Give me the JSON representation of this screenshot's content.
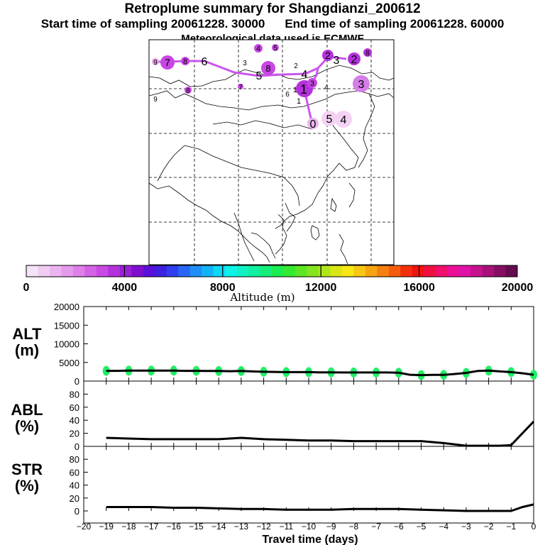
{
  "header": {
    "title": "Retroplume summary for Shangdianzi_200612",
    "start_text": "Start time of sampling 20061228. 30000",
    "end_text": "End time of sampling 20061228. 60000",
    "met_text": "Meteorological data used is ECMWF"
  },
  "colorbar": {
    "tick_labels": [
      "0",
      "4000",
      "8000",
      "12000",
      "16000",
      "20000"
    ],
    "label": "Altitude (m)",
    "colors": [
      "#f5e4f7",
      "#f0ccf3",
      "#ebb4f0",
      "#e59aed",
      "#df7fe9",
      "#d463e6",
      "#c84ae3",
      "#b432dc",
      "#9a1fd6",
      "#7e0fd0",
      "#5a10d8",
      "#3d21e0",
      "#2f3ff0",
      "#2866f6",
      "#1f8ef8",
      "#14b3f7",
      "#0fd7f5",
      "#0ff2e8",
      "#10f2c5",
      "#11f0a0",
      "#15ee7a",
      "#1ceb52",
      "#34e92f",
      "#5ce624",
      "#86e51e",
      "#b0e619",
      "#d8e716",
      "#f7e716",
      "#f8c713",
      "#f7a411",
      "#f5800f",
      "#f45d0e",
      "#f2300d",
      "#f1130f",
      "#f10f40",
      "#f10f6c",
      "#ec1096",
      "#df12a6",
      "#c5128f",
      "#a71178",
      "#860e62",
      "#640b4d"
    ]
  },
  "map": {
    "top_labels": [
      "9",
      "7",
      "8",
      "6",
      "3",
      "4",
      "5",
      "8",
      "5",
      "4",
      "2",
      "2",
      "3",
      "2",
      "8"
    ],
    "mid_labels": [
      "9",
      "8",
      "7",
      "6",
      "1",
      "1",
      "3",
      "1",
      "4",
      "3"
    ],
    "low_labels": [
      "0",
      "5",
      "4"
    ],
    "path_color": "#cc55ee"
  },
  "chart_data": [
    {
      "type": "line",
      "panel": "ALT",
      "ylabel_line1": "ALT",
      "ylabel_line2": "(m)",
      "xlim": [
        -20,
        0
      ],
      "ylim": [
        0,
        20000
      ],
      "yticks": [
        0,
        5000,
        10000,
        15000,
        20000
      ],
      "ytick_labels": [
        "0",
        "5000",
        "10000",
        "15000",
        "20000"
      ],
      "x": [
        -19.0,
        -18.5,
        -18.0,
        -17.5,
        -17.0,
        -16.5,
        -16.0,
        -15.5,
        -15.0,
        -14.5,
        -14.0,
        -13.5,
        -13.0,
        -12.5,
        -12.0,
        -11.5,
        -11.0,
        -10.5,
        -10.0,
        -9.5,
        -9.0,
        -8.5,
        -8.0,
        -7.5,
        -7.0,
        -6.5,
        -6.0,
        -5.5,
        -5.0,
        -4.5,
        -4.0,
        -3.5,
        -3.0,
        -2.5,
        -2.0,
        -1.5,
        -1.0,
        -0.5,
        0.0
      ],
      "values": [
        2750,
        2750,
        2800,
        2800,
        2800,
        2800,
        2800,
        2750,
        2750,
        2700,
        2700,
        2650,
        2700,
        2600,
        2500,
        2450,
        2400,
        2400,
        2400,
        2350,
        2350,
        2300,
        2300,
        2300,
        2300,
        2300,
        2250,
        1700,
        1600,
        1650,
        1650,
        1900,
        2200,
        2700,
        2800,
        2600,
        2400,
        2100,
        1700
      ],
      "plume_color": "#22ee66",
      "plume_points": [
        [
          -19.0,
          2750
        ],
        [
          -18.0,
          2800
        ],
        [
          -17.0,
          2800
        ],
        [
          -16.0,
          2800
        ],
        [
          -15.0,
          2750
        ],
        [
          -14.0,
          2700
        ],
        [
          -13.0,
          2700
        ],
        [
          -12.0,
          2500
        ],
        [
          -11.0,
          2400
        ],
        [
          -10.0,
          2400
        ],
        [
          -9.0,
          2350
        ],
        [
          -8.0,
          2300
        ],
        [
          -7.0,
          2300
        ],
        [
          -6.0,
          2250
        ],
        [
          -5.0,
          1600
        ],
        [
          -4.0,
          1650
        ],
        [
          -3.0,
          2200
        ],
        [
          -2.0,
          2800
        ],
        [
          -1.0,
          2400
        ],
        [
          0.0,
          1700
        ]
      ]
    },
    {
      "type": "line",
      "panel": "ABL",
      "ylabel_line1": "ABL",
      "ylabel_line2": "(%)",
      "xlim": [
        -20,
        0
      ],
      "ylim": [
        0,
        100
      ],
      "yticks": [
        0,
        20,
        40,
        60,
        80
      ],
      "ytick_labels": [
        "0",
        "20",
        "40",
        "60",
        "80"
      ],
      "x": [
        -19.0,
        -18.0,
        -17.0,
        -16.0,
        -15.0,
        -14.0,
        -13.0,
        -12.0,
        -11.0,
        -10.0,
        -9.0,
        -8.0,
        -7.0,
        -6.0,
        -5.0,
        -4.0,
        -3.0,
        -2.0,
        -1.5,
        -1.0,
        0.0
      ],
      "values": [
        13,
        12,
        11,
        11,
        11,
        11,
        13,
        11,
        10,
        9,
        9,
        8,
        8,
        8,
        8,
        5,
        1,
        1,
        1,
        2,
        38
      ]
    },
    {
      "type": "line",
      "panel": "STR",
      "ylabel_line1": "STR",
      "ylabel_line2": "(%)",
      "xlim": [
        -20,
        0
      ],
      "ylim": [
        0,
        100
      ],
      "yticks": [
        0,
        20,
        40,
        60,
        80
      ],
      "ytick_labels": [
        "0",
        "20",
        "40",
        "60",
        "80"
      ],
      "x": [
        -19.0,
        -18.0,
        -17.0,
        -16.0,
        -15.0,
        -14.0,
        -13.0,
        -12.0,
        -11.0,
        -10.0,
        -9.0,
        -8.0,
        -7.0,
        -6.0,
        -5.0,
        -4.0,
        -3.0,
        -2.0,
        -1.0,
        -0.5,
        0.0
      ],
      "values": [
        6,
        6,
        6,
        5,
        5,
        4,
        3,
        3,
        2,
        2,
        2,
        3,
        3,
        3,
        2,
        1,
        0,
        0,
        0,
        6,
        10
      ],
      "xlabel": "Travel time (days)",
      "xticks": [
        -20,
        -19,
        -18,
        -17,
        -16,
        -15,
        -14,
        -13,
        -12,
        -11,
        -10,
        -9,
        -8,
        -7,
        -6,
        -5,
        -4,
        -3,
        -2,
        -1,
        0
      ],
      "xtick_labels": [
        "−20",
        "−19",
        "−18",
        "−17",
        "−16",
        "−15",
        "−14",
        "−13",
        "−12",
        "−11",
        "−10",
        "−9",
        "−8",
        "−7",
        "−6",
        "−5",
        "−4",
        "−3",
        "−2",
        "−1",
        "0"
      ]
    }
  ]
}
